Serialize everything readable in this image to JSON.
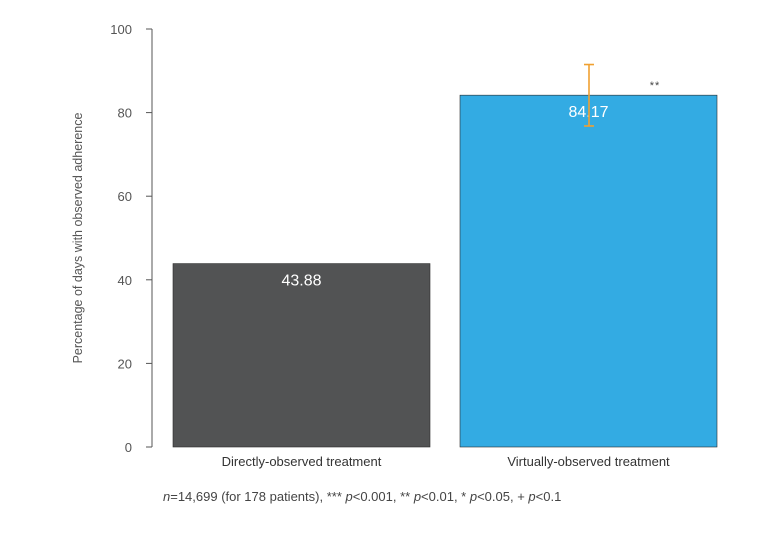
{
  "chart_data": {
    "type": "bar",
    "categories": [
      "Directly-observed treatment",
      "Virtually-observed treatment"
    ],
    "values": [
      43.88,
      84.17
    ],
    "value_labels": [
      "43.88",
      "84.17"
    ],
    "error_bars": [
      null,
      {
        "low": 76.8,
        "high": 91.5
      }
    ],
    "significance": [
      null,
      "**"
    ],
    "title": "",
    "xlabel": "",
    "ylabel": "Percentage of days with observed adherence",
    "ylim": [
      0,
      100
    ],
    "yticks": [
      "0",
      "20",
      "40",
      "60",
      "80",
      "100"
    ],
    "grid": false,
    "colors": [
      "#525354",
      "#33ABE3"
    ],
    "error_bar_color": "#F0A030"
  },
  "footnote": {
    "n_var": "n",
    "n_text": "=14,699 (for 178 patients),  *** ",
    "p1": "p",
    "t1": "<0.001, ** ",
    "p2": "p",
    "t2": "<0.01, * ",
    "p3": "p",
    "t3": "<0.05, + ",
    "p4": "p",
    "t4": "<0.1"
  }
}
